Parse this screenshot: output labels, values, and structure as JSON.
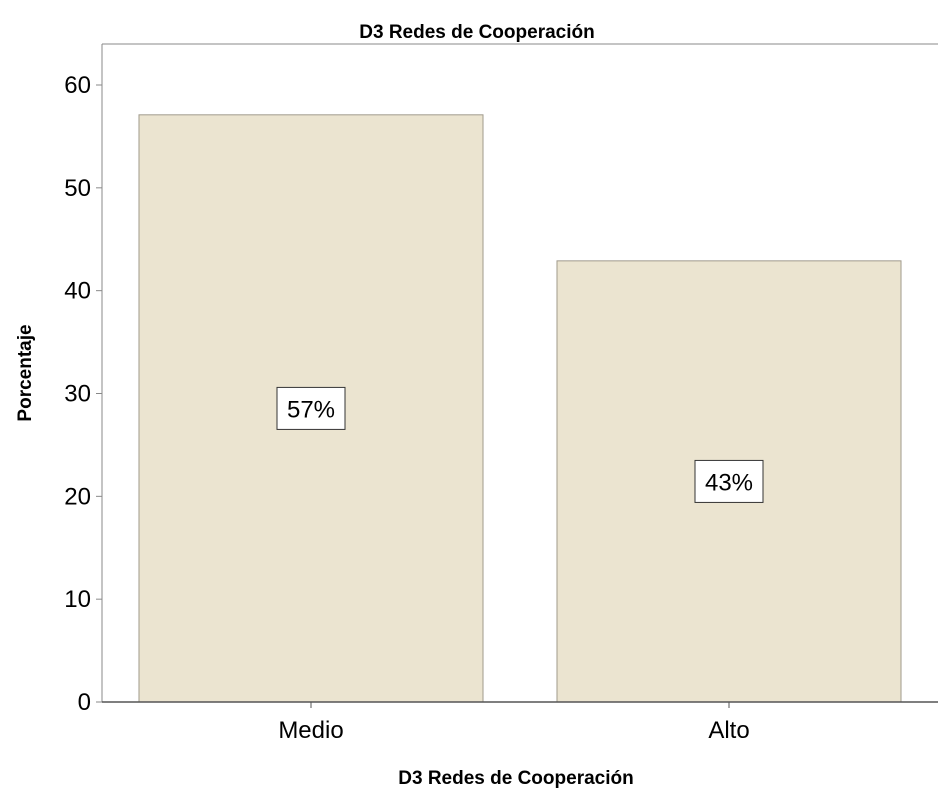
{
  "chart_data": {
    "type": "bar",
    "title": "D3 Redes de Cooperación",
    "xlabel": "D3 Redes de Cooperación",
    "ylabel": "Porcentaje",
    "categories": [
      "Medio",
      "Alto"
    ],
    "values": [
      57.1,
      42.9
    ],
    "data_labels": [
      "57%",
      "43%"
    ],
    "ylim": [
      0,
      60
    ],
    "yticks": [
      0,
      10,
      20,
      30,
      40,
      50,
      60
    ],
    "grid": false,
    "legend": "none",
    "bar_color": "#ebe4d0",
    "bar_edge_color": "#a09a8c"
  }
}
